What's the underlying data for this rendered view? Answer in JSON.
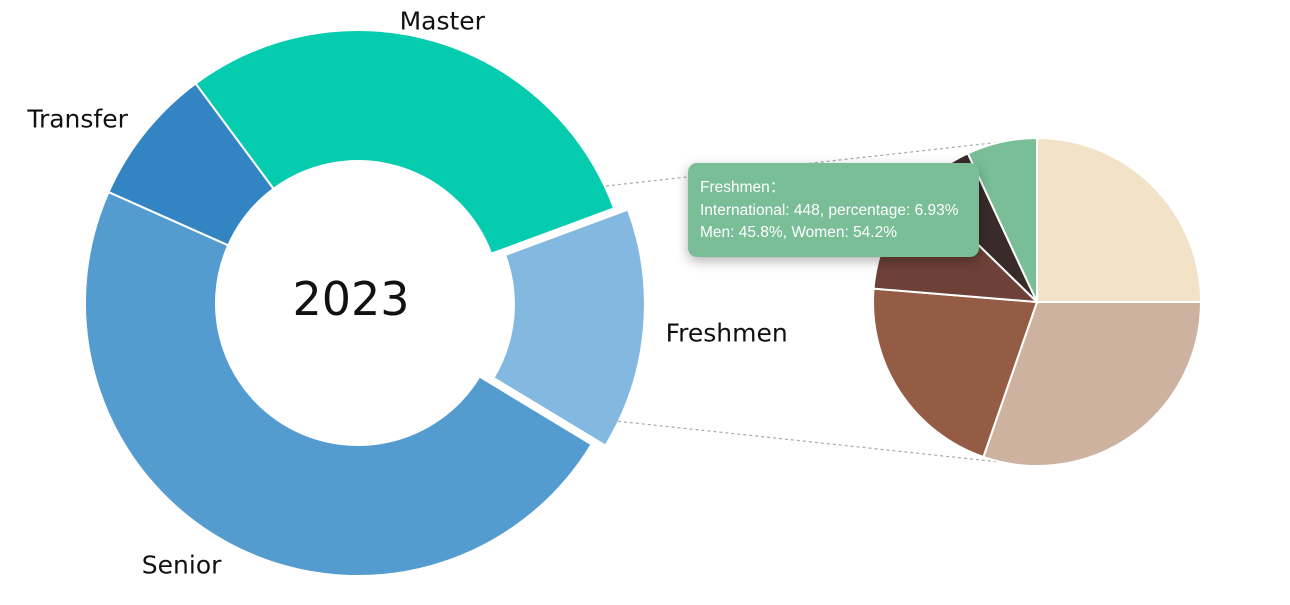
{
  "chart_data": [
    {
      "type": "pie",
      "variant": "donut",
      "center_text": "2023",
      "slices": [
        {
          "label": "Master",
          "value": 29.5,
          "color": "#05cbaf"
        },
        {
          "label": "Freshmen",
          "value": 14.3,
          "color": "#83b8e0"
        },
        {
          "label": "Senior",
          "value": 48.0,
          "color": "#549cd0"
        },
        {
          "label": "Transfer",
          "value": 8.2,
          "color": "#3384c2"
        }
      ]
    },
    {
      "type": "pie",
      "breakdown_of": "Freshmen",
      "slices": [
        {
          "value": 25.0,
          "color": "#f2e2c8"
        },
        {
          "value": 30.3,
          "color": "#cdb39f"
        },
        {
          "value": 21.0,
          "color": "#955c45"
        },
        {
          "value": 11.0,
          "color": "#6d4038"
        },
        {
          "value": 5.77,
          "color": "#3a2b2b"
        },
        {
          "value": 6.93,
          "color": "#79be97"
        }
      ]
    }
  ],
  "tooltip": {
    "title": "Freshmen：",
    "line1": "International: 448, percentage: 6.93%",
    "line2": "Men: 45.8%, Women: 54.2%",
    "background": "#79be97"
  }
}
